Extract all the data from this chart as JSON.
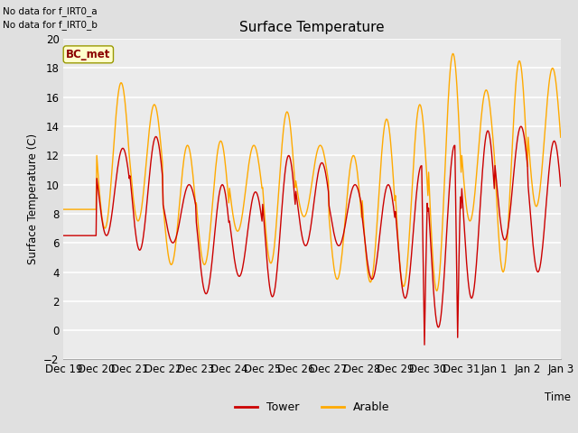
{
  "title": "Surface Temperature",
  "ylabel": "Surface Temperature (C)",
  "xlabel": "Time",
  "ylim": [
    -2,
    20
  ],
  "yticks": [
    -2,
    0,
    2,
    4,
    6,
    8,
    10,
    12,
    14,
    16,
    18,
    20
  ],
  "annotation_lines": [
    "No data for f_IRT0_a",
    "No data for f_IRT0_b"
  ],
  "bc_met_label": "BC_met",
  "legend_labels": [
    "Tower",
    "Arable"
  ],
  "tower_color": "#cc0000",
  "arable_color": "#ffaa00",
  "fig_bg_color": "#e0e0e0",
  "plot_bg_color": "#ebebeb",
  "grid_color": "#ffffff",
  "xtick_labels": [
    "Dec 19",
    "Dec 20",
    "Dec 21",
    "Dec 22",
    "Dec 23",
    "Dec 24",
    "Dec 25",
    "Dec 26",
    "Dec 27",
    "Dec 28",
    "Dec 29",
    "Dec 30",
    "Dec 31",
    "Jan 1",
    "Jan 2",
    "Jan 3"
  ],
  "num_days": 15,
  "points_per_day": 48,
  "tower_peaks": [
    6.5,
    12.5,
    13.3,
    10.0,
    10.0,
    9.5,
    12.0,
    11.5,
    10.0,
    10.0,
    11.3,
    12.7,
    13.7,
    14.0,
    13.0
  ],
  "tower_troughs": [
    6.5,
    6.5,
    5.5,
    6.0,
    2.5,
    3.7,
    2.3,
    5.8,
    5.8,
    3.5,
    2.2,
    0.2,
    2.2,
    6.2,
    4.0
  ],
  "tower_trough2": [
    null,
    null,
    null,
    null,
    null,
    null,
    null,
    null,
    null,
    null,
    -1.0,
    -0.5,
    null,
    null,
    null
  ],
  "arable_peaks": [
    8.3,
    17.0,
    15.5,
    12.7,
    13.0,
    12.7,
    15.0,
    12.7,
    12.0,
    14.5,
    15.5,
    19.0,
    16.5,
    18.5,
    18.0
  ],
  "arable_troughs": [
    8.3,
    7.0,
    7.5,
    4.5,
    4.5,
    6.8,
    4.6,
    7.8,
    3.5,
    3.3,
    3.0,
    2.7,
    7.5,
    4.0,
    8.5
  ],
  "tower_phase_peak": 0.55,
  "arable_phase_peak": 0.5
}
